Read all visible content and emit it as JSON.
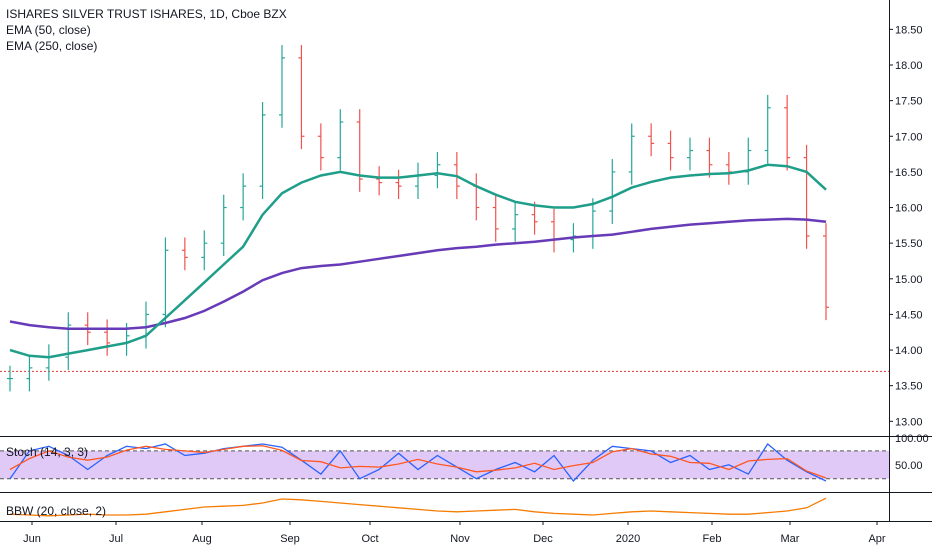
{
  "legend": {
    "line1": "ISHARES SILVER TRUST ISHARES, 1D, Cboe BZX",
    "line2": "EMA (50, close)",
    "line3": "EMA (250, close)"
  },
  "panes": {
    "stoch_label": "Stoch (14, 3, 3)",
    "bbw_label": "BBW (20, close, 2)",
    "stoch_ticks": [
      "100.00",
      "50.00"
    ]
  },
  "colors": {
    "up": "#26a69a",
    "down": "#ef5350",
    "ema50": "#1f9e89",
    "ema250": "#673ab7",
    "stoch_k": "#2962ff",
    "stoch_d": "#ff5722",
    "stoch_band": "#e1c9f7",
    "bbw": "#f57c00",
    "price_line": "#e53935"
  },
  "chart_data": {
    "type": "line",
    "title": "ISHARES SILVER TRUST ISHARES, 1D, Cboe BZX",
    "xlabel": "",
    "ylabel": "",
    "x_ticks": [
      "Jun",
      "Jul",
      "Aug",
      "Sep",
      "Oct",
      "Nov",
      "Dec",
      "2020",
      "Feb",
      "Mar",
      "Apr"
    ],
    "y_ticks": [
      13.0,
      13.5,
      14.0,
      14.5,
      15.0,
      15.5,
      16.0,
      16.5,
      17.0,
      17.5,
      18.0,
      18.5
    ],
    "ylim": [
      12.85,
      18.8
    ],
    "price_line": 13.7,
    "x": [
      "May 27",
      "Jun 3",
      "Jun 10",
      "Jun 17",
      "Jun 24",
      "Jul 1",
      "Jul 8",
      "Jul 15",
      "Jul 22",
      "Jul 29",
      "Aug 5",
      "Aug 12",
      "Aug 19",
      "Aug 26",
      "Sep 2",
      "Sep 9",
      "Sep 16",
      "Sep 23",
      "Sep 30",
      "Oct 7",
      "Oct 14",
      "Oct 21",
      "Oct 28",
      "Nov 4",
      "Nov 11",
      "Nov 18",
      "Nov 25",
      "Dec 2",
      "Dec 9",
      "Dec 16",
      "Dec 23",
      "Dec 30",
      "Jan 6",
      "Jan 13",
      "Jan 20",
      "Jan 27",
      "Feb 3",
      "Feb 10",
      "Feb 17",
      "Feb 24",
      "Mar 2",
      "Mar 9",
      "Mar 16"
    ],
    "series": [
      {
        "values": [
          13.6,
          13.75,
          13.9,
          14.35,
          14.25,
          14.1,
          14.2,
          14.5,
          15.4,
          15.3,
          15.5,
          16.0,
          16.3,
          17.3,
          18.1,
          17.0,
          16.7,
          17.2,
          16.4,
          16.35,
          16.3,
          16.45,
          16.6,
          16.3,
          16.0,
          15.7,
          15.9,
          15.8,
          15.55,
          15.6,
          15.95,
          16.5,
          17.0,
          16.9,
          16.7,
          16.8,
          16.6,
          16.5,
          16.8,
          17.4,
          16.7,
          15.6,
          14.6
        ]
      },
      {
        "name": "EMA (50, close)",
        "values": [
          14.0,
          13.92,
          13.9,
          13.95,
          14.0,
          14.05,
          14.1,
          14.2,
          14.45,
          14.7,
          14.95,
          15.2,
          15.45,
          15.9,
          16.2,
          16.35,
          16.45,
          16.5,
          16.45,
          16.42,
          16.42,
          16.45,
          16.48,
          16.44,
          16.3,
          16.18,
          16.08,
          16.03,
          16.0,
          16.0,
          16.05,
          16.15,
          16.28,
          16.36,
          16.42,
          16.45,
          16.47,
          16.48,
          16.52,
          16.6,
          16.58,
          16.5,
          16.25
        ]
      },
      {
        "name": "EMA (250, close)",
        "values": [
          14.4,
          14.35,
          14.32,
          14.3,
          14.3,
          14.3,
          14.3,
          14.32,
          14.38,
          14.45,
          14.55,
          14.68,
          14.82,
          14.98,
          15.08,
          15.15,
          15.18,
          15.2,
          15.24,
          15.28,
          15.32,
          15.36,
          15.4,
          15.43,
          15.45,
          15.48,
          15.5,
          15.52,
          15.55,
          15.58,
          15.6,
          15.62,
          15.66,
          15.7,
          15.73,
          15.76,
          15.78,
          15.8,
          15.82,
          15.83,
          15.84,
          15.83,
          15.8
        ]
      },
      {
        "name": "Stoch (14, 3, 3)",
        "values": [
          20,
          80,
          90,
          70,
          40,
          70,
          90,
          85,
          95,
          70,
          75,
          85,
          90,
          95,
          88,
          60,
          30,
          80,
          20,
          40,
          75,
          40,
          70,
          45,
          20,
          40,
          55,
          35,
          70,
          15,
          60,
          90,
          85,
          80,
          55,
          70,
          40,
          50,
          30,
          95,
          60,
          35,
          15
        ]
      },
      {
        "name": "BBW (20, close, 2)",
        "values": [
          0.06,
          0.05,
          0.04,
          0.05,
          0.06,
          0.05,
          0.05,
          0.06,
          0.09,
          0.12,
          0.15,
          0.16,
          0.17,
          0.2,
          0.25,
          0.24,
          0.22,
          0.2,
          0.18,
          0.16,
          0.14,
          0.12,
          0.1,
          0.09,
          0.1,
          0.11,
          0.12,
          0.09,
          0.07,
          0.06,
          0.05,
          0.07,
          0.09,
          0.1,
          0.09,
          0.08,
          0.07,
          0.06,
          0.06,
          0.08,
          0.1,
          0.14,
          0.26
        ]
      }
    ],
    "legend": "top-left",
    "grid": false
  }
}
